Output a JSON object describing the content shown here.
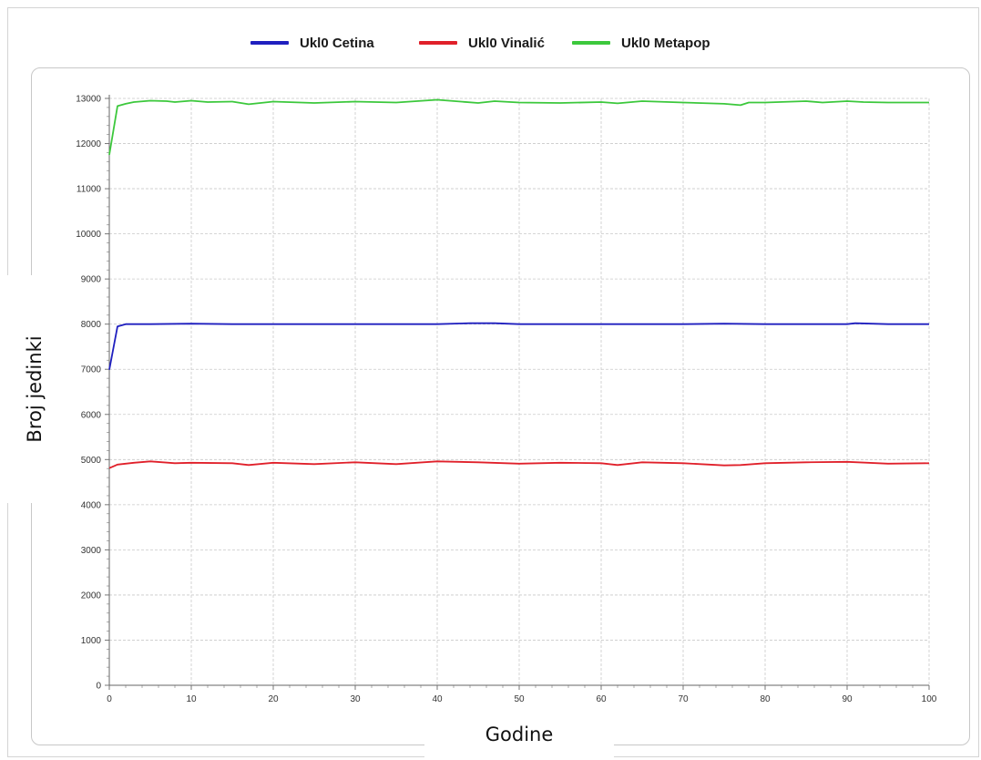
{
  "chart_data": {
    "type": "line",
    "xlabel": "Godine",
    "ylabel": "Broj jedinki",
    "xlim": [
      0,
      100
    ],
    "ylim": [
      0,
      13000
    ],
    "x_ticks": [
      0,
      10,
      20,
      30,
      40,
      50,
      60,
      70,
      80,
      90,
      100
    ],
    "y_ticks": [
      0,
      1000,
      2000,
      3000,
      4000,
      5000,
      6000,
      7000,
      8000,
      9000,
      10000,
      11000,
      12000,
      13000
    ],
    "grid": true,
    "legend_position": "top-center",
    "series": [
      {
        "name": "Ukl0 Cetina",
        "color": "#1f1fbf",
        "x": [
          0,
          1,
          2,
          5,
          10,
          15,
          20,
          30,
          40,
          44,
          47,
          50,
          60,
          70,
          75,
          80,
          90,
          91,
          95,
          100
        ],
        "y": [
          6990,
          7950,
          8000,
          8000,
          8010,
          8000,
          8000,
          8000,
          8000,
          8020,
          8020,
          8000,
          8000,
          8000,
          8010,
          8000,
          8000,
          8020,
          8000,
          8000
        ]
      },
      {
        "name": "Ukl0 Vinalić",
        "color": "#e0202a",
        "x": [
          0,
          1,
          3,
          5,
          8,
          10,
          15,
          17,
          20,
          25,
          30,
          35,
          40,
          45,
          50,
          55,
          60,
          62,
          65,
          70,
          75,
          77,
          80,
          85,
          90,
          95,
          100
        ],
        "y": [
          4810,
          4890,
          4930,
          4960,
          4920,
          4930,
          4920,
          4880,
          4930,
          4900,
          4940,
          4900,
          4960,
          4940,
          4910,
          4930,
          4920,
          4880,
          4940,
          4920,
          4870,
          4880,
          4920,
          4940,
          4950,
          4910,
          4920
        ]
      },
      {
        "name": "Ukl0 Metapop",
        "color": "#3cc83c",
        "x": [
          0,
          1,
          2,
          3,
          5,
          7,
          8,
          10,
          12,
          15,
          17,
          20,
          25,
          30,
          35,
          40,
          45,
          47,
          50,
          55,
          60,
          62,
          65,
          70,
          75,
          77,
          78,
          80,
          85,
          87,
          90,
          92,
          95,
          100
        ],
        "y": [
          11750,
          12830,
          12880,
          12920,
          12950,
          12940,
          12920,
          12950,
          12920,
          12930,
          12870,
          12930,
          12900,
          12930,
          12910,
          12970,
          12900,
          12940,
          12910,
          12900,
          12920,
          12890,
          12940,
          12910,
          12880,
          12850,
          12910,
          12910,
          12940,
          12910,
          12940,
          12920,
          12910,
          12910
        ]
      }
    ]
  }
}
